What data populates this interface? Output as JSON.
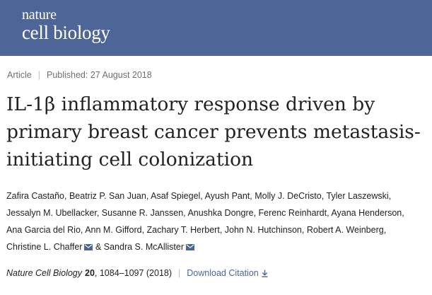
{
  "header": {
    "logo_line1": "nature",
    "logo_line2": "cell biology",
    "background_color": "#4d6697"
  },
  "meta": {
    "type": "Article",
    "published": "Published: 27 August 2018"
  },
  "title": "IL-1β inflammatory response driven by primary breast cancer prevents metastasis-initiating cell colonization",
  "authors": [
    {
      "name": "Zafira Castaño",
      "suffix": ","
    },
    {
      "name": "Beatriz P. San Juan",
      "suffix": ","
    },
    {
      "name": "Asaf Spiegel",
      "suffix": ","
    },
    {
      "name": "Ayush Pant",
      "suffix": ","
    },
    {
      "name": "Molly J. DeCristo",
      "suffix": ","
    },
    {
      "name": "Tyler Laszewski",
      "suffix": ","
    },
    {
      "name": "Jessalyn M. Ubellacker",
      "suffix": ","
    },
    {
      "name": "Susanne R. Janssen",
      "suffix": ","
    },
    {
      "name": "Anushka Dongre",
      "suffix": ","
    },
    {
      "name": "Ferenc Reinhardt",
      "suffix": ","
    },
    {
      "name": "Ayana Henderson",
      "suffix": ","
    },
    {
      "name": "Ana Garcia del Rio",
      "suffix": ","
    },
    {
      "name": "Ann M. Gifford",
      "suffix": ","
    },
    {
      "name": "Zachary T. Herbert",
      "suffix": ","
    },
    {
      "name": "John N. Hutchinson",
      "suffix": ","
    },
    {
      "name": "Robert A. Weinberg",
      "suffix": ","
    },
    {
      "name": "Christine L. Chaffer",
      "suffix": " &",
      "email": true,
      "icon": "envelope-icon"
    },
    {
      "name": "Sandra S. McAllister",
      "suffix": "",
      "email": true,
      "icon": "envelope-icon"
    }
  ],
  "citation": {
    "journal": "Nature Cell Biology",
    "volume": "20",
    "pages_year": ", 1084–1097 (2018)",
    "download_label": "Download Citation",
    "download_icon": "download-arrow-icon",
    "link_color": "#4d6697"
  }
}
